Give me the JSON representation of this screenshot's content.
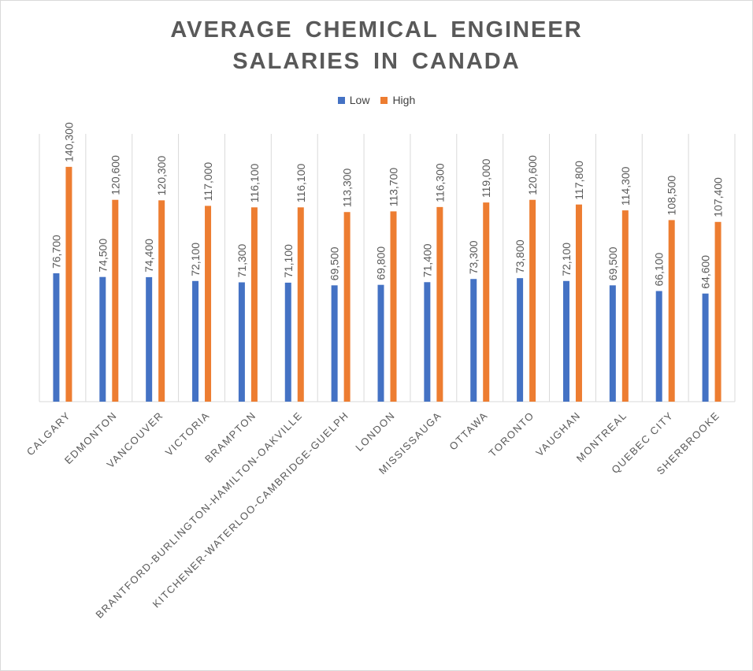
{
  "chart_data": {
    "type": "bar",
    "title_lines": [
      "AVERAGE CHEMICAL ENGINEER",
      "SALARIES IN CANADA"
    ],
    "categories": [
      "CALGARY",
      "EDMONTON",
      "VANCOUVER",
      "VICTORIA",
      "BRAMPTON",
      "BRANTFORD-BURLINGTON-HAMILTON-OAKVILLE",
      "KITCHENER-WATERLOO-CAMBRIDGE-GUELPH",
      "LONDON",
      "MISSISSAUGA",
      "OTTAWA",
      "TORONTO",
      "VAUGHAN",
      "MONTREAL",
      "QUEBEC CITY",
      "SHERBROOKE"
    ],
    "series": [
      {
        "name": "Low",
        "color": "#4472c4",
        "values": [
          76700,
          74500,
          74400,
          72100,
          71300,
          71100,
          69500,
          69800,
          71400,
          73300,
          73800,
          72100,
          69500,
          66100,
          64600
        ],
        "labels": [
          "76,700",
          "74,500",
          "74,400",
          "72,100",
          "71,300",
          "71,100",
          "69,500",
          "69,800",
          "71,400",
          "73,300",
          "73,800",
          "72,100",
          "69,500",
          "66,100",
          "64,600"
        ]
      },
      {
        "name": "High",
        "color": "#ed7d31",
        "values": [
          140300,
          120600,
          120300,
          117000,
          116100,
          116100,
          113300,
          113700,
          116300,
          119000,
          120600,
          117800,
          114300,
          108500,
          107400
        ],
        "labels": [
          "140,300",
          "120,600",
          "120,300",
          "117,000",
          "116,100",
          "116,100",
          "113,300",
          "113,700",
          "116,300",
          "119,000",
          "120,600",
          "117,800",
          "114,300",
          "108,500",
          "107,400"
        ]
      }
    ],
    "ylim": [
      0,
      160000
    ],
    "grid": "vertical category separators",
    "legend_position": "top",
    "data_labels": "rotated, above bars"
  }
}
